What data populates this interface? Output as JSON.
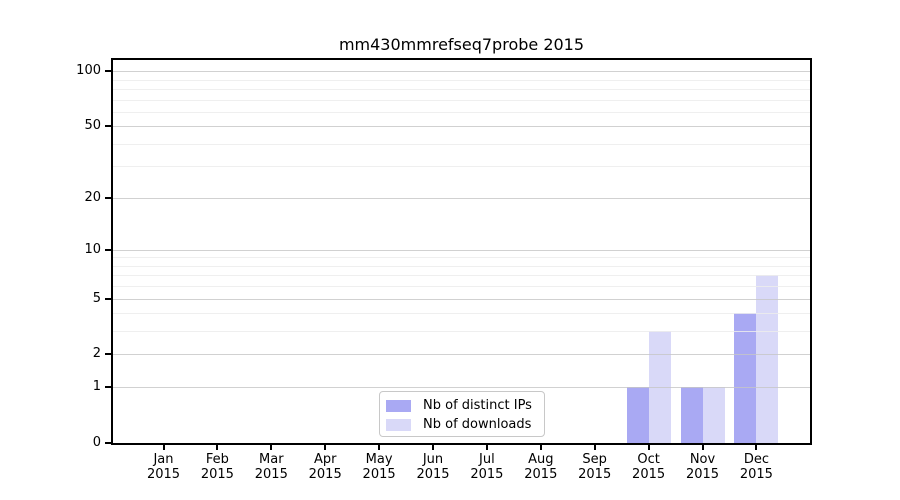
{
  "figure": {
    "title": "mm430mmrefseq7probe 2015",
    "colors": {
      "distinct_ips": "#a9a9f3",
      "downloads": "#d9d9f8",
      "grid_major": "#c6c6c6",
      "grid_minor": "#ececec",
      "spine": "#000000",
      "background": "#ffffff"
    }
  },
  "legend": {
    "items": [
      {
        "label": "Nb of distinct IPs",
        "color_key": "distinct_ips"
      },
      {
        "label": "Nb of downloads",
        "color_key": "downloads"
      }
    ]
  },
  "chart_data": {
    "type": "bar",
    "title": "mm430mmrefseq7probe 2015",
    "categories": [
      "Jan 2015",
      "Feb 2015",
      "Mar 2015",
      "Apr 2015",
      "May 2015",
      "Jun 2015",
      "Jul 2015",
      "Aug 2015",
      "Sep 2015",
      "Oct 2015",
      "Nov 2015",
      "Dec 2015"
    ],
    "series": [
      {
        "name": "Nb of distinct IPs",
        "color_key": "distinct_ips",
        "values": [
          0,
          0,
          0,
          0,
          0,
          0,
          0,
          0,
          0,
          1,
          1,
          4
        ]
      },
      {
        "name": "Nb of downloads",
        "color_key": "downloads",
        "values": [
          0,
          0,
          0,
          0,
          0,
          0,
          0,
          0,
          0,
          3,
          1,
          7
        ]
      }
    ],
    "xlabel": "",
    "ylabel": "",
    "yscale": "log1p",
    "ylim": [
      0,
      115
    ],
    "ytick_values": [
      0,
      1,
      2,
      5,
      10,
      20,
      50,
      100
    ],
    "minor_gridline_values": [
      3,
      4,
      6,
      7,
      8,
      9,
      30,
      40,
      60,
      70,
      80,
      90
    ],
    "grid": "horizontal",
    "legend_position": "lower center"
  }
}
